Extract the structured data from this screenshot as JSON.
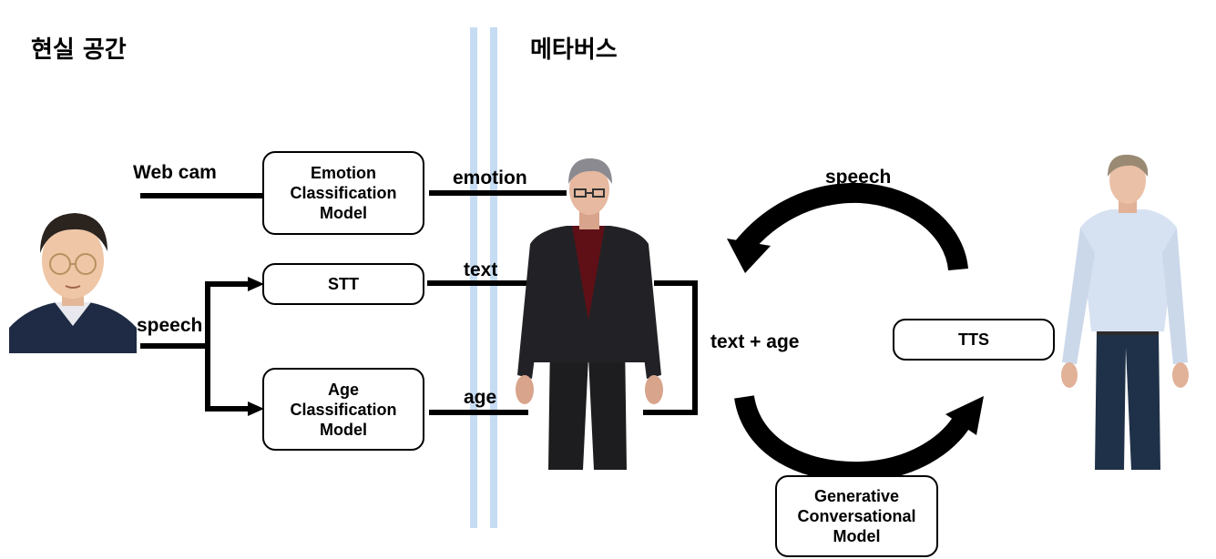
{
  "headings": {
    "real_space": "현실 공간",
    "metaverse": "메타버스"
  },
  "labels": {
    "webcam": "Web cam",
    "speech_left": "speech",
    "emotion": "emotion",
    "text": "text",
    "age": "age",
    "text_age": "text + age",
    "speech_right": "speech"
  },
  "boxes": {
    "emotion": [
      "Emotion",
      "Classification",
      "Model"
    ],
    "stt": "STT",
    "age": [
      "Age",
      "Classification",
      "Model"
    ],
    "tts": "TTS",
    "generative": [
      "Generative",
      "Conversational",
      "Model"
    ]
  },
  "colors": {
    "divider": "#c6dcf2",
    "line": "#000000"
  }
}
